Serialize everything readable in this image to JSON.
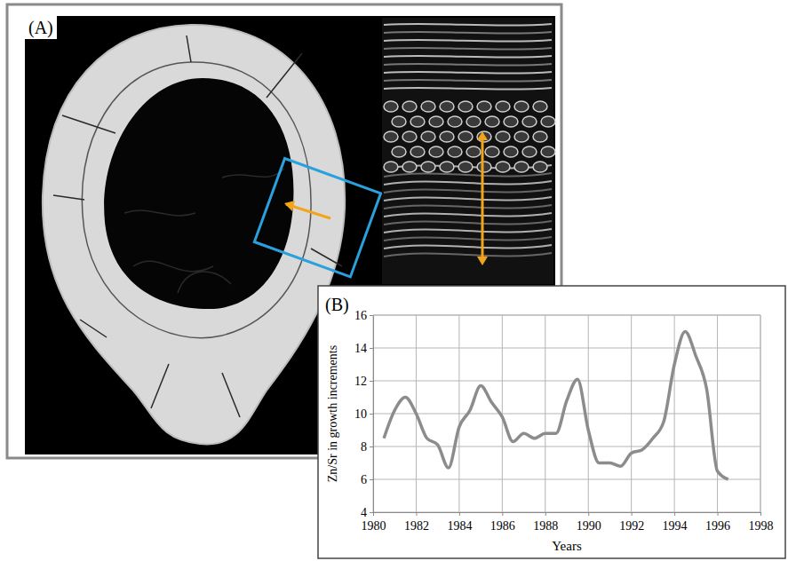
{
  "panels": [
    "(A)",
    "(B)"
  ],
  "chart_data": {
    "type": "line",
    "x_label": "Years",
    "y_label": "Zn/Sr in growth increments",
    "x": [
      1980.5,
      1981,
      1981.5,
      1982,
      1982.5,
      1983,
      1983.5,
      1984,
      1984.5,
      1985,
      1985.5,
      1986,
      1986.5,
      1987,
      1987.5,
      1988,
      1988.5,
      1989,
      1989.5,
      1990,
      1990.5,
      1991,
      1991.5,
      1992,
      1992.5,
      1993,
      1993.5,
      1994,
      1994.5,
      1995,
      1995.5,
      1996,
      1996.5
    ],
    "values": [
      8.5,
      10.2,
      11.0,
      10.0,
      8.5,
      8.1,
      6.7,
      9.2,
      10.2,
      11.7,
      10.7,
      9.8,
      8.3,
      8.8,
      8.5,
      8.8,
      8.8,
      10.8,
      12.1,
      9.0,
      7.0,
      7.0,
      6.8,
      7.6,
      7.8,
      8.5,
      9.5,
      13.0,
      15.0,
      13.5,
      11.5,
      6.5,
      6.0
    ],
    "color": "#8c8c8c",
    "xlim": [
      1980,
      1998
    ],
    "xticks": [
      1980,
      1982,
      1984,
      1986,
      1988,
      1990,
      1992,
      1994,
      1996,
      1998
    ],
    "ylim": [
      4,
      16
    ],
    "yticks": [
      4,
      6,
      8,
      10,
      12,
      14,
      16
    ],
    "grid": true
  }
}
